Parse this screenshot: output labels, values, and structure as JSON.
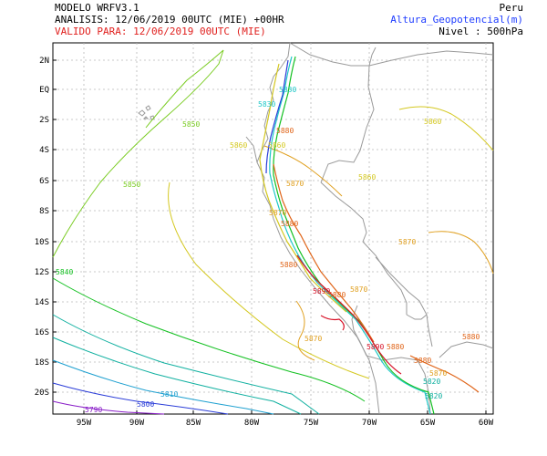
{
  "header": {
    "model": "MODELO WRFV3.1",
    "analysis": "ANALISIS: 12/06/2019 00UTC (MIE) +00HR",
    "valid": "VALIDO PARA: 12/06/2019 00UTC (MIE)",
    "region": "Peru",
    "variable": "Altura_Geopotencial(m)",
    "level": "Nivel : 500hPa"
  },
  "axes": {
    "lat_labels": [
      "2N",
      "EQ",
      "2S",
      "4S",
      "6S",
      "8S",
      "10S",
      "12S",
      "14S",
      "16S",
      "18S",
      "20S"
    ],
    "lon_labels": [
      "95W",
      "90W",
      "85W",
      "80W",
      "75W",
      "70W",
      "65W",
      "60W"
    ]
  },
  "contour_labels": [
    {
      "text": "5790",
      "color": "#8a1ec8"
    },
    {
      "text": "5800",
      "color": "#2a3cd8"
    },
    {
      "text": "5810",
      "color": "#1ea0d0"
    },
    {
      "text": "5820",
      "color": "#10b0a0"
    },
    {
      "text": "5840",
      "color": "#12c020"
    },
    {
      "text": "5850",
      "color": "#7acc22"
    },
    {
      "text": "5850",
      "color": "#7acc22"
    },
    {
      "text": "5860",
      "color": "#d4c820"
    },
    {
      "text": "5860",
      "color": "#d4c820"
    },
    {
      "text": "5860",
      "color": "#d4c820"
    },
    {
      "text": "5870",
      "color": "#e0a020"
    },
    {
      "text": "5870",
      "color": "#e0a020"
    },
    {
      "text": "5870",
      "color": "#e0a020"
    },
    {
      "text": "5870",
      "color": "#e0a020"
    },
    {
      "text": "5880",
      "color": "#e06418"
    },
    {
      "text": "5880",
      "color": "#e06418"
    },
    {
      "text": "5880",
      "color": "#e06418"
    },
    {
      "text": "5880",
      "color": "#e06418"
    },
    {
      "text": "5890",
      "color": "#d8142a"
    },
    {
      "text": "5880",
      "color": "#e06418"
    },
    {
      "text": "5830",
      "color": "#1ec8c8"
    },
    {
      "text": "5830",
      "color": "#1ec8c8"
    },
    {
      "text": "5820",
      "color": "#10b0a0"
    },
    {
      "text": "5870",
      "color": "#e0a020"
    },
    {
      "text": "5860",
      "color": "#d4c820"
    },
    {
      "text": "5870",
      "color": "#e0a020"
    },
    {
      "text": "5880",
      "color": "#e06418"
    },
    {
      "text": "5890",
      "color": "#d8142a"
    },
    {
      "text": "5880",
      "color": "#e06418"
    }
  ],
  "colors": {
    "c5790": "#8a1ec8",
    "c5800": "#2a3cd8",
    "c5810": "#1ea0d0",
    "c5820": "#10b0a0",
    "c5830": "#1ec8c8",
    "c5840": "#12c020",
    "c5850": "#7acc22",
    "c5860": "#d4c820",
    "c5870": "#e0a020",
    "c5880": "#e06418",
    "c5890": "#d8142a",
    "border": "#9a9a9a",
    "grid": "#b8b8b8"
  }
}
